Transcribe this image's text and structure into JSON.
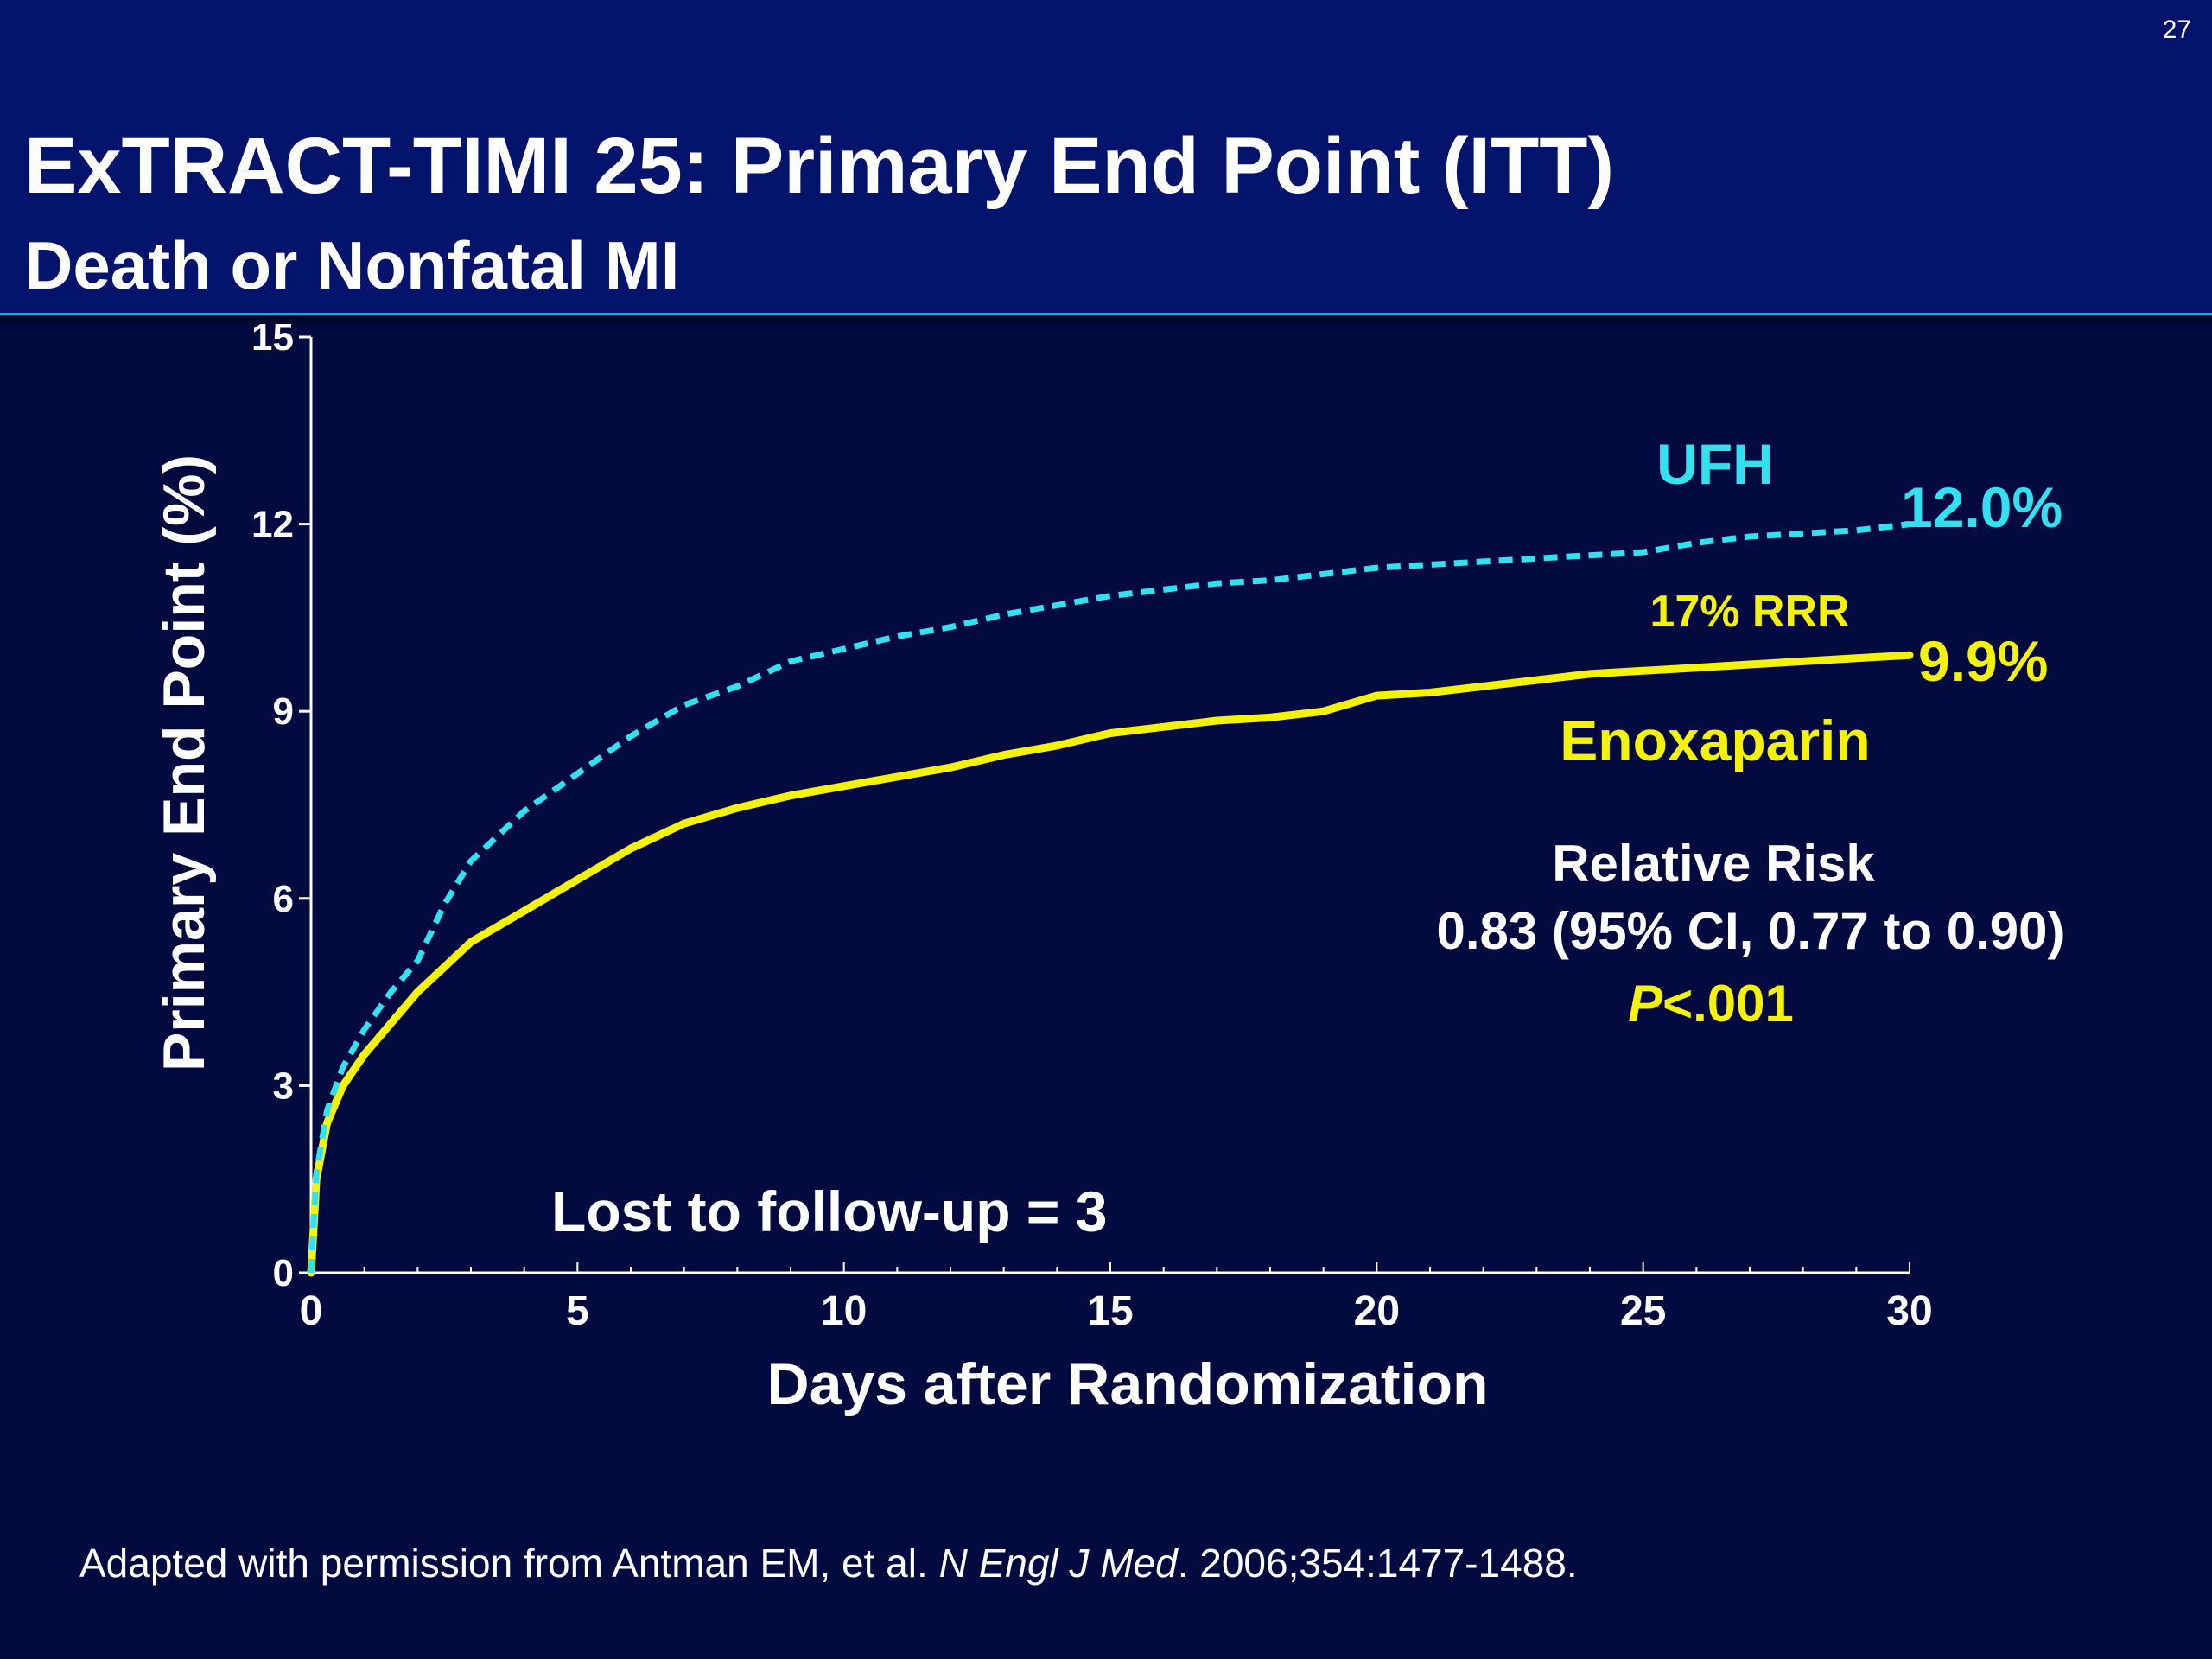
{
  "slide": {
    "number": "27",
    "title": "ExTRACT-TIMI 25: Primary End Point (ITT)",
    "subtitle": "Death or Nonfatal MI",
    "footnote": {
      "prefix": "Adapted with permission from Antman EM, et al. ",
      "journal": "N Engl J Med",
      "suffix": ". 2006;354:1477-1488."
    }
  },
  "colors": {
    "ufh": "#33e0f0",
    "enoxaparin": "#f5f20a",
    "axis": "#ffffff",
    "background": "#020a3f",
    "header": "#04136b"
  },
  "chart_data": {
    "type": "line",
    "title": "",
    "xlabel": "Days after Randomization",
    "ylabel": "Primary End Point (%)",
    "xlim": [
      0,
      30
    ],
    "ylim": [
      0,
      15
    ],
    "xticks": [
      0,
      5,
      10,
      15,
      20,
      25,
      30
    ],
    "yticks": [
      0,
      3,
      6,
      9,
      12,
      15
    ],
    "grid": false,
    "series": [
      {
        "name": "UFH",
        "style": "dashed",
        "end_label": "12.0%",
        "x": [
          0,
          0.1,
          0.3,
          0.6,
          1,
          1.5,
          2,
          2.5,
          3,
          4,
          5,
          6,
          7,
          8,
          9,
          10,
          11,
          12,
          13,
          14,
          15,
          16,
          17,
          18,
          19,
          20,
          21,
          22,
          23,
          24,
          25,
          26,
          27,
          28,
          29,
          30
        ],
        "y": [
          0,
          1.6,
          2.6,
          3.3,
          3.9,
          4.5,
          5.0,
          5.9,
          6.6,
          7.4,
          8.0,
          8.6,
          9.1,
          9.4,
          9.8,
          10.0,
          10.2,
          10.35,
          10.55,
          10.7,
          10.85,
          10.95,
          11.05,
          11.1,
          11.2,
          11.3,
          11.35,
          11.4,
          11.45,
          11.5,
          11.55,
          11.7,
          11.8,
          11.85,
          11.9,
          12.0
        ]
      },
      {
        "name": "Enoxaparin",
        "style": "solid",
        "end_label": "9.9%",
        "x": [
          0,
          0.1,
          0.3,
          0.6,
          1,
          1.5,
          2,
          2.5,
          3,
          4,
          5,
          6,
          7,
          8,
          9,
          10,
          11,
          12,
          13,
          14,
          15,
          16,
          17,
          18,
          19,
          20,
          21,
          22,
          23,
          24,
          25,
          26,
          27,
          28,
          29,
          30
        ],
        "y": [
          0,
          1.5,
          2.4,
          3.0,
          3.5,
          4.0,
          4.5,
          4.9,
          5.3,
          5.8,
          6.3,
          6.8,
          7.2,
          7.45,
          7.65,
          7.8,
          7.95,
          8.1,
          8.3,
          8.45,
          8.65,
          8.75,
          8.85,
          8.9,
          9.0,
          9.25,
          9.3,
          9.4,
          9.5,
          9.6,
          9.65,
          9.7,
          9.75,
          9.8,
          9.85,
          9.9
        ]
      }
    ],
    "annotations": {
      "ufh_label": "UFH",
      "enox_label": "Enoxaparin",
      "rrr": "17% RRR",
      "rr_title": "Relative Risk",
      "rr_value": "0.83 (95% CI, 0.77 to 0.90)",
      "p_italic": "P",
      "p_rest": "<.001",
      "lost": "Lost to follow-up = 3"
    }
  }
}
